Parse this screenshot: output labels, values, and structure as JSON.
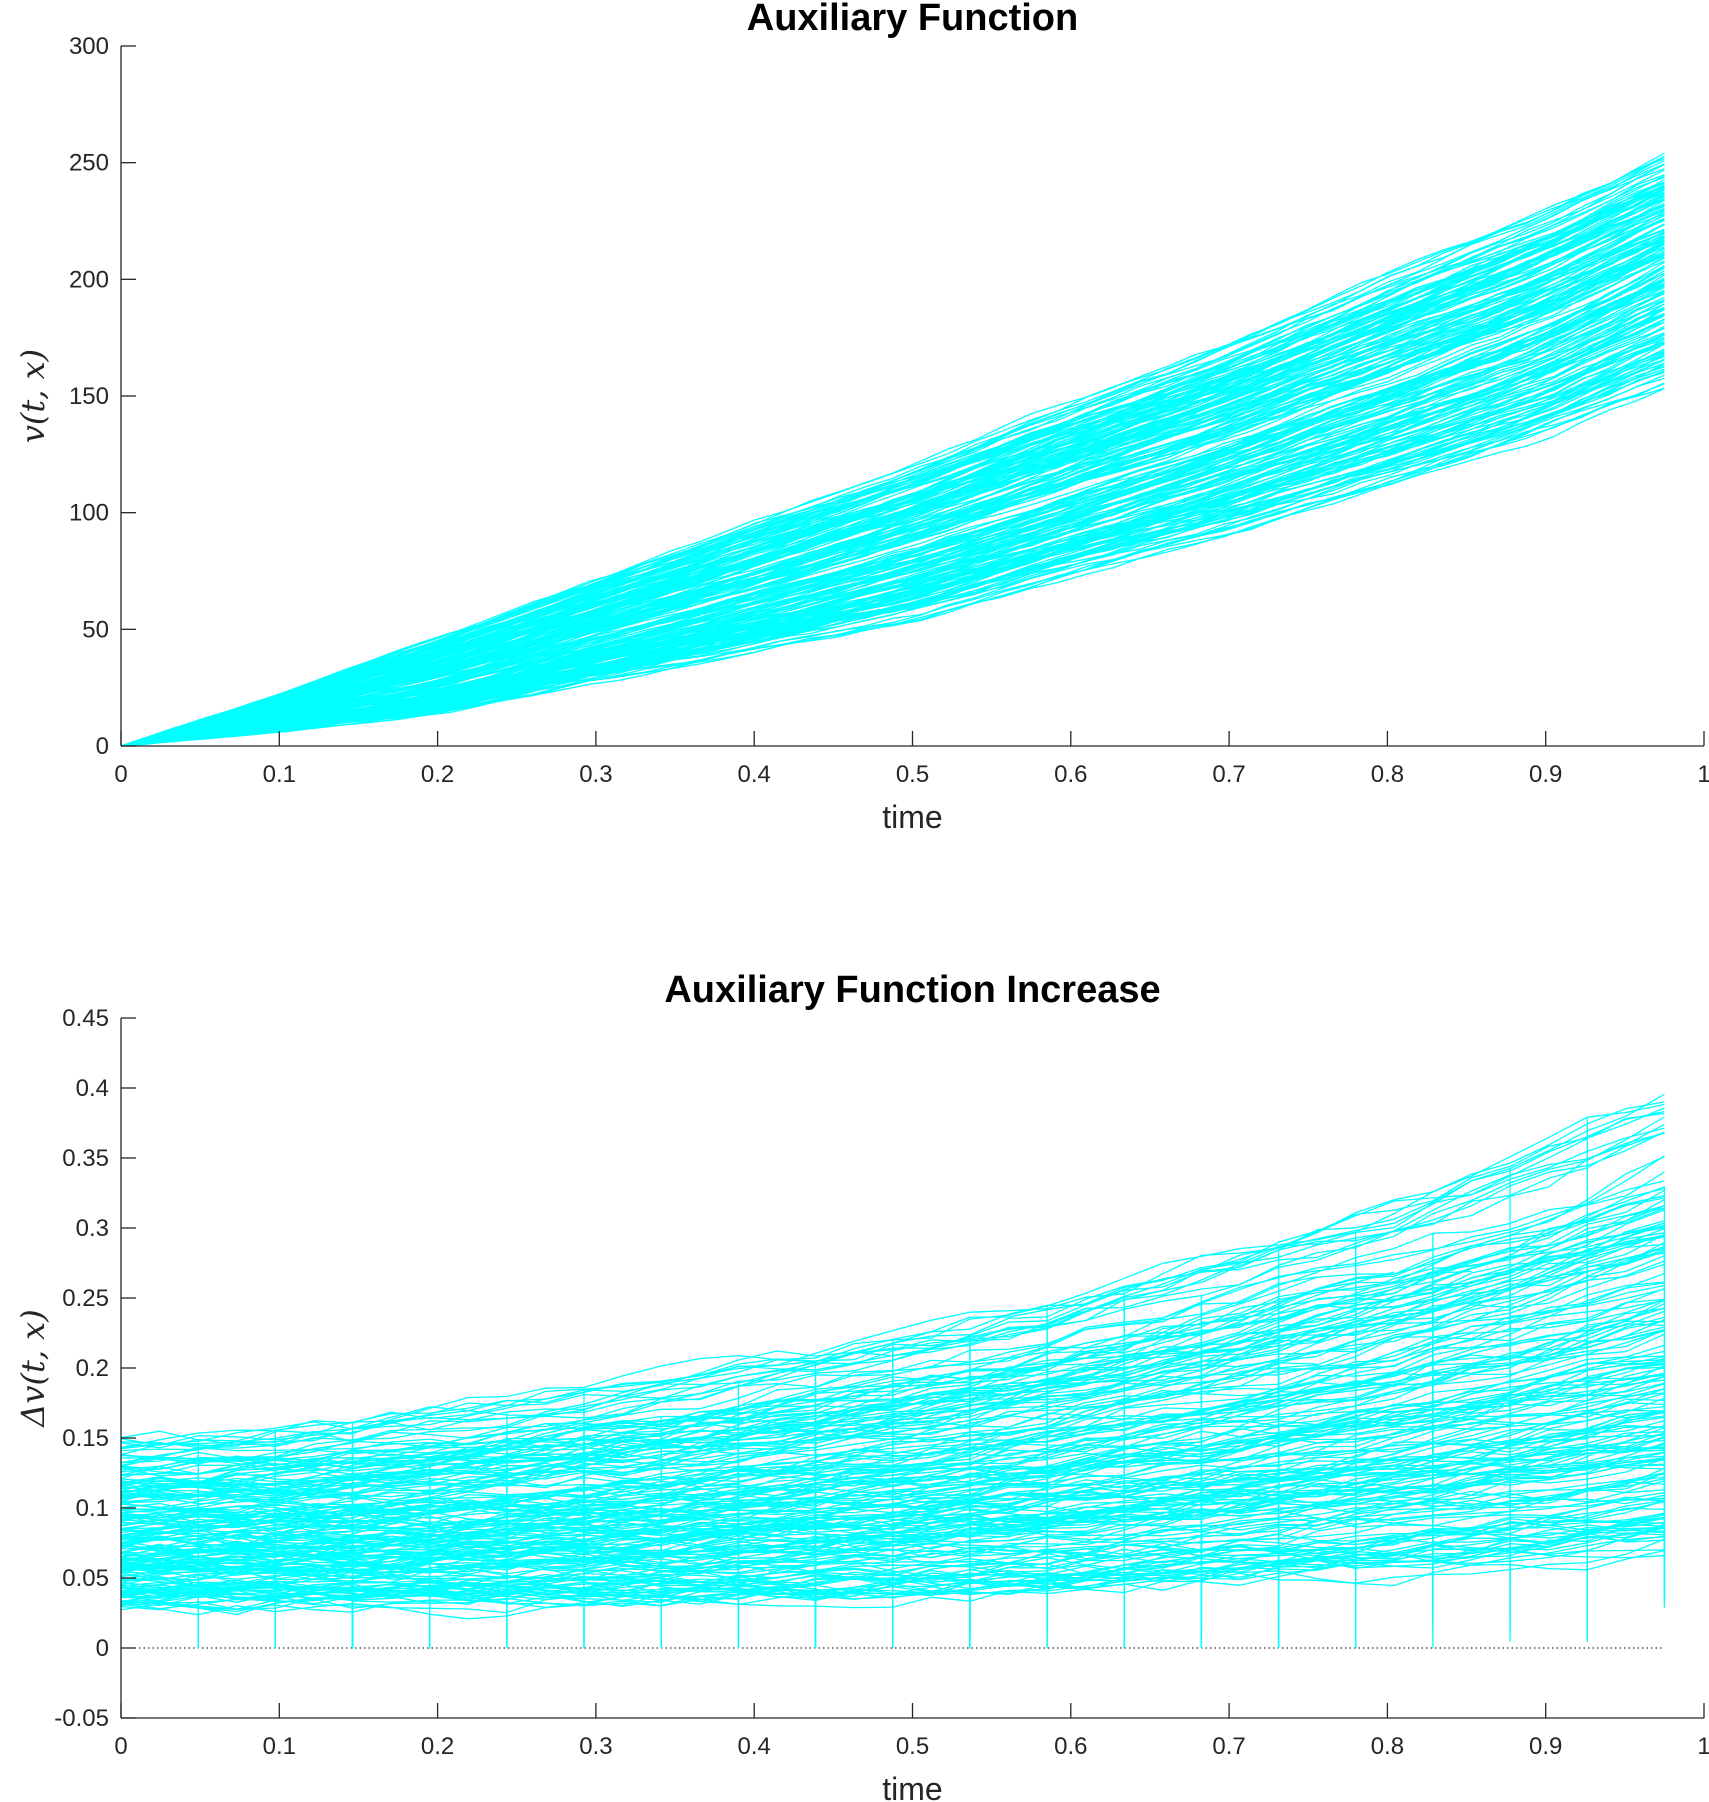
{
  "figure": {
    "colors": {
      "series": "#00ffff",
      "axis": "#262626",
      "zero_line": "#000000",
      "title": "#000000"
    },
    "paths_per_panel": 200
  },
  "chart_data": [
    {
      "type": "line",
      "title": "Auxiliary Function",
      "xlabel": "time",
      "ylabel": "v(t, x)",
      "xlim": [
        0,
        1
      ],
      "ylim": [
        0,
        300
      ],
      "xticks": [
        "0",
        "0.1",
        "0.2",
        "0.3",
        "0.4",
        "0.5",
        "0.6",
        "0.7",
        "0.8",
        "0.9",
        "1"
      ],
      "yticks": [
        "0",
        "50",
        "100",
        "150",
        "200",
        "250",
        "300"
      ],
      "grid": false,
      "legend": "none",
      "x": [
        0,
        0.1,
        0.2,
        0.3,
        0.4,
        0.5,
        0.6,
        0.7,
        0.8,
        0.9,
        0.975
      ],
      "series": [
        {
          "values": [
            0,
            22,
            46,
            70,
            94,
            118,
            145,
            170,
            200,
            228,
            252
          ]
        },
        {
          "values": [
            0,
            16,
            35,
            56,
            77,
            98,
            122,
            146,
            172,
            198,
            222
          ]
        },
        {
          "values": [
            0,
            10,
            22,
            38,
            55,
            73,
            94,
            116,
            140,
            165,
            190
          ]
        },
        {
          "values": [
            0,
            6,
            14,
            29,
            42,
            55,
            75,
            92,
            112,
            135,
            155
          ]
        }
      ],
      "ensemble_band": {
        "upper_end": 252,
        "lower_end": 152,
        "time_end": 0.975
      }
    },
    {
      "type": "line",
      "title": "Auxiliary Function Increase",
      "xlabel": "time",
      "ylabel": "Δv(t, x)",
      "xlim": [
        0,
        1
      ],
      "ylim": [
        -0.05,
        0.45
      ],
      "xticks": [
        "0",
        "0.1",
        "0.2",
        "0.3",
        "0.4",
        "0.5",
        "0.6",
        "0.7",
        "0.8",
        "0.9",
        "1"
      ],
      "yticks": [
        "-0.05",
        "0",
        "0.05",
        "0.1",
        "0.15",
        "0.2",
        "0.25",
        "0.3",
        "0.35",
        "0.4",
        "0.45"
      ],
      "grid": false,
      "legend": "none",
      "reference_line": {
        "y": 0,
        "style": "dotted"
      },
      "x": [
        0,
        0.1,
        0.2,
        0.3,
        0.4,
        0.5,
        0.6,
        0.7,
        0.8,
        0.9,
        0.975
      ],
      "series": [
        {
          "values": [
            0.148,
            0.156,
            0.168,
            0.185,
            0.203,
            0.225,
            0.252,
            0.283,
            0.318,
            0.358,
            0.395
          ]
        },
        {
          "values": [
            0.1,
            0.104,
            0.112,
            0.123,
            0.135,
            0.15,
            0.168,
            0.189,
            0.212,
            0.238,
            0.263
          ]
        },
        {
          "values": [
            0.06,
            0.062,
            0.066,
            0.072,
            0.079,
            0.087,
            0.097,
            0.108,
            0.121,
            0.136,
            0.15
          ]
        },
        {
          "values": [
            0.032,
            0.031,
            0.031,
            0.032,
            0.034,
            0.037,
            0.041,
            0.047,
            0.054,
            0.063,
            0.072
          ]
        }
      ],
      "ensemble_band": {
        "upper_end": 0.405,
        "lower_end": 0.07,
        "time_end": 0.975
      }
    }
  ]
}
